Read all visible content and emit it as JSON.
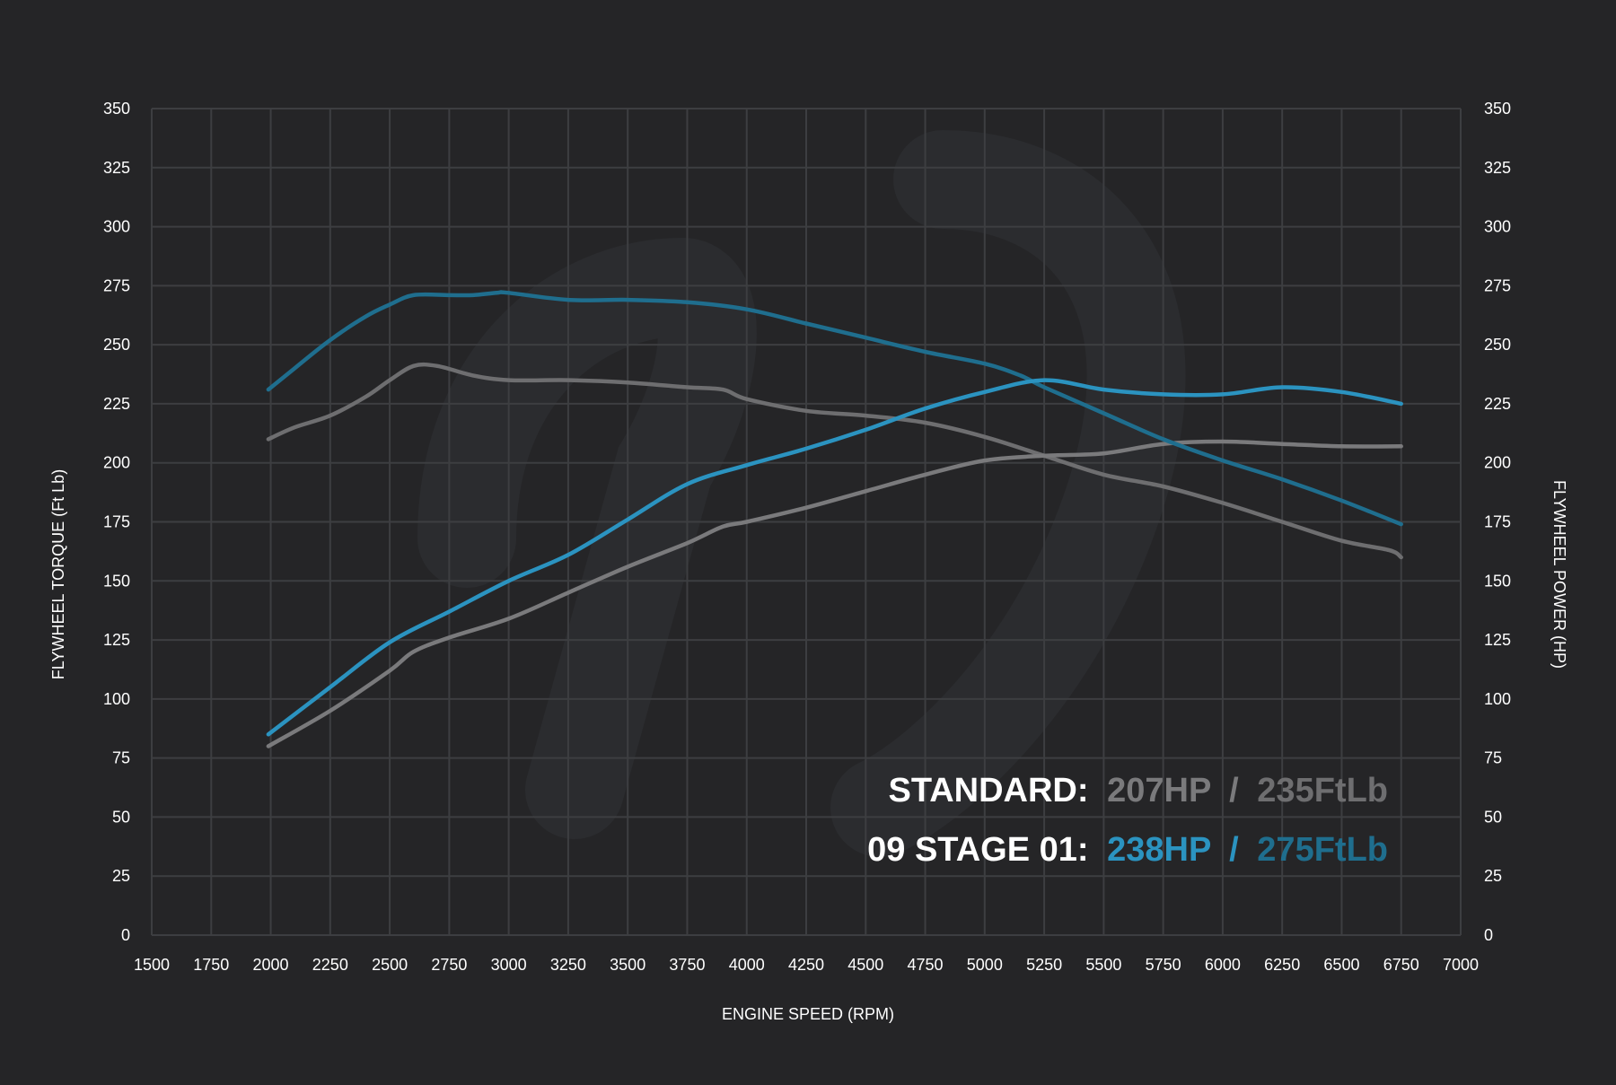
{
  "colors": {
    "background": "#252527",
    "grid": "#3d3e41",
    "text": "#ffffff",
    "standard_power": "#7a7a7c",
    "standard_torque": "#6e6e70",
    "stage_power": "#2b93c0",
    "stage_torque": "#1f6e8e",
    "watermark": "#2b2c2f"
  },
  "chart_data": {
    "type": "line",
    "xlabel": "ENGINE SPEED (RPM)",
    "ylabel_left": "FLYWHEEL TORQUE (Ft Lb)",
    "ylabel_right": "FLYWHEEL POWER (HP)",
    "xlim": [
      1500,
      7000
    ],
    "ylim": [
      0,
      350
    ],
    "grid": true,
    "x_ticks": [
      "1500",
      "1750",
      "2000",
      "2250",
      "2500",
      "2750",
      "3000",
      "3250",
      "3500",
      "3750",
      "4000",
      "4250",
      "4500",
      "4750",
      "5000",
      "5250",
      "5500",
      "5750",
      "6000",
      "6250",
      "6500",
      "6750",
      "7000"
    ],
    "y_ticks_left": [
      "0",
      "25",
      "50",
      "75",
      "100",
      "125",
      "150",
      "175",
      "200",
      "225",
      "250",
      "275",
      "300",
      "325",
      "350"
    ],
    "y_ticks_right": [
      "0",
      "25",
      "50",
      "75",
      "100",
      "125",
      "150",
      "175",
      "200",
      "225",
      "250",
      "275",
      "300",
      "325",
      "350"
    ],
    "series": [
      {
        "key": "standard_torque",
        "axis": "left",
        "points": [
          [
            1990,
            210
          ],
          [
            2100,
            215
          ],
          [
            2250,
            220
          ],
          [
            2400,
            228
          ],
          [
            2500,
            235
          ],
          [
            2600,
            241
          ],
          [
            2700,
            241
          ],
          [
            2850,
            237
          ],
          [
            3000,
            235
          ],
          [
            3250,
            235
          ],
          [
            3500,
            234
          ],
          [
            3750,
            232
          ],
          [
            3900,
            231
          ],
          [
            4000,
            227
          ],
          [
            4250,
            222
          ],
          [
            4500,
            220
          ],
          [
            4750,
            217
          ],
          [
            5000,
            211
          ],
          [
            5250,
            203
          ],
          [
            5500,
            195
          ],
          [
            5750,
            190
          ],
          [
            6000,
            183
          ],
          [
            6250,
            175
          ],
          [
            6500,
            167
          ],
          [
            6700,
            163
          ],
          [
            6750,
            160
          ]
        ]
      },
      {
        "key": "standard_power",
        "axis": "right",
        "points": [
          [
            1990,
            80
          ],
          [
            2250,
            95
          ],
          [
            2500,
            112
          ],
          [
            2600,
            120
          ],
          [
            2750,
            126
          ],
          [
            3000,
            134
          ],
          [
            3250,
            145
          ],
          [
            3500,
            156
          ],
          [
            3750,
            166
          ],
          [
            3900,
            173
          ],
          [
            4000,
            175
          ],
          [
            4250,
            181
          ],
          [
            4500,
            188
          ],
          [
            4750,
            195
          ],
          [
            5000,
            201
          ],
          [
            5250,
            203
          ],
          [
            5500,
            204
          ],
          [
            5750,
            208
          ],
          [
            6000,
            209
          ],
          [
            6250,
            208
          ],
          [
            6500,
            207
          ],
          [
            6750,
            207
          ]
        ]
      },
      {
        "key": "stage_torque",
        "axis": "left",
        "points": [
          [
            1990,
            231
          ],
          [
            2100,
            240
          ],
          [
            2250,
            252
          ],
          [
            2400,
            262
          ],
          [
            2500,
            267
          ],
          [
            2600,
            271
          ],
          [
            2750,
            271
          ],
          [
            2850,
            271
          ],
          [
            2950,
            272
          ],
          [
            3000,
            272
          ],
          [
            3250,
            269
          ],
          [
            3500,
            269
          ],
          [
            3750,
            268
          ],
          [
            4000,
            265
          ],
          [
            4250,
            259
          ],
          [
            4500,
            253
          ],
          [
            4750,
            247
          ],
          [
            5000,
            242
          ],
          [
            5150,
            237
          ],
          [
            5250,
            232
          ],
          [
            5500,
            221
          ],
          [
            5750,
            210
          ],
          [
            6000,
            201
          ],
          [
            6250,
            193
          ],
          [
            6500,
            184
          ],
          [
            6750,
            174
          ]
        ]
      },
      {
        "key": "stage_power",
        "axis": "right",
        "points": [
          [
            1990,
            85
          ],
          [
            2250,
            105
          ],
          [
            2500,
            124
          ],
          [
            2750,
            137
          ],
          [
            3000,
            150
          ],
          [
            3250,
            161
          ],
          [
            3500,
            176
          ],
          [
            3750,
            191
          ],
          [
            4000,
            199
          ],
          [
            4250,
            206
          ],
          [
            4500,
            214
          ],
          [
            4750,
            223
          ],
          [
            5000,
            230
          ],
          [
            5250,
            235
          ],
          [
            5500,
            231
          ],
          [
            5750,
            229
          ],
          [
            6000,
            229
          ],
          [
            6250,
            232
          ],
          [
            6500,
            230
          ],
          [
            6750,
            225
          ]
        ]
      }
    ]
  },
  "summary": {
    "standard": {
      "label": "STANDARD:",
      "hp": "207HP",
      "sep": "/",
      "torque": "235FtLb"
    },
    "stage": {
      "label": "09 STAGE 01:",
      "hp": "238HP",
      "sep": "/",
      "torque": "275FtLb"
    }
  }
}
